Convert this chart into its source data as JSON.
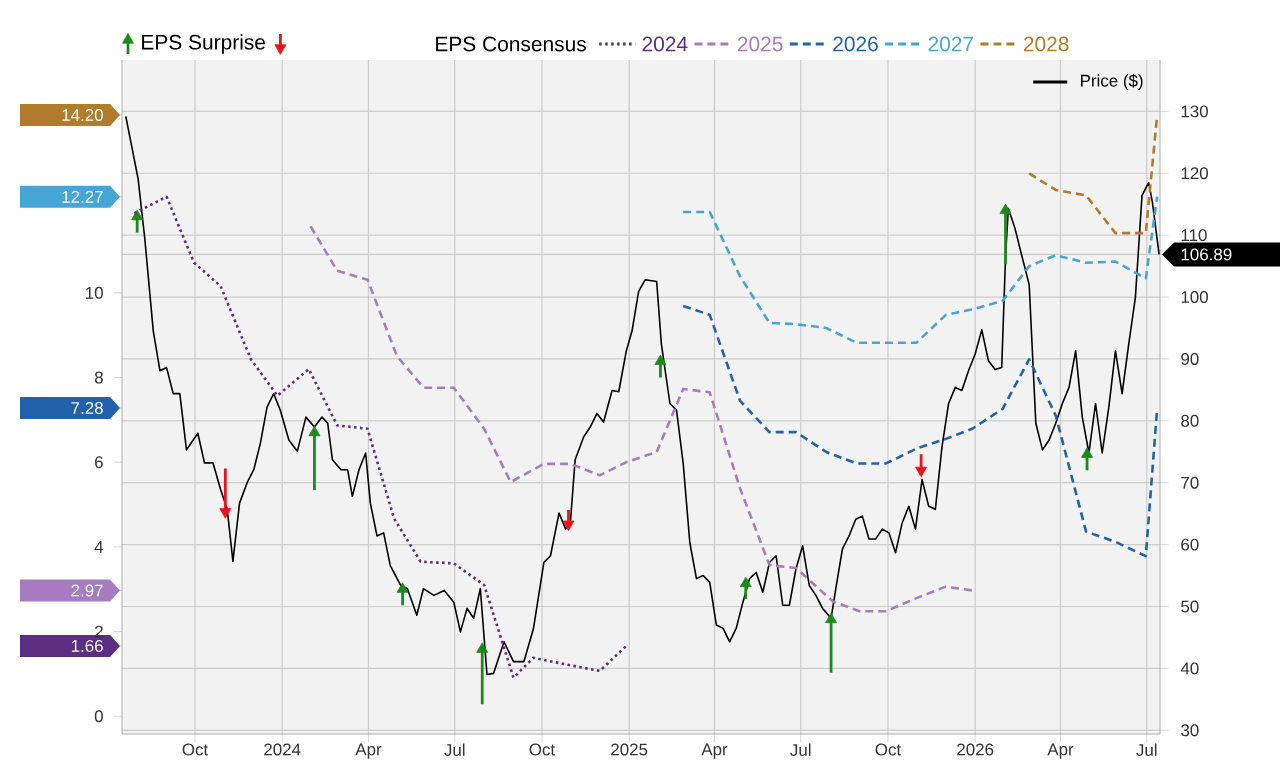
{
  "chart_data": {
    "type": "line",
    "legend": "top",
    "legend_title": "EPS Consensus",
    "grid": true,
    "xlim": [
      "2023-07-16",
      "2026-07-15"
    ],
    "xticks": [
      {
        "value": "2023-10-01",
        "label": "Oct"
      },
      {
        "value": "2024-01-01",
        "label": "2024"
      },
      {
        "value": "2024-04-01",
        "label": "Apr"
      },
      {
        "value": "2024-07-01",
        "label": "Jul"
      },
      {
        "value": "2024-10-01",
        "label": "Oct"
      },
      {
        "value": "2025-01-01",
        "label": "2025"
      },
      {
        "value": "2025-04-01",
        "label": "Apr"
      },
      {
        "value": "2025-07-01",
        "label": "Jul"
      },
      {
        "value": "2025-10-01",
        "label": "Oct"
      },
      {
        "value": "2026-01-01",
        "label": "2026"
      },
      {
        "value": "2026-04-01",
        "label": "Apr"
      },
      {
        "value": "2026-07-01",
        "label": "Jul"
      }
    ],
    "ylim": [
      -0.42,
      15.5
    ],
    "yticks": [
      0,
      {
        "value": 1.66,
        "label": "1.66"
      },
      2,
      {
        "value": 2.97,
        "label": "2.97"
      },
      4,
      6,
      {
        "value": 7.28,
        "label": "7.28"
      },
      8,
      10,
      {
        "value": 12.27,
        "label": "12.27"
      },
      {
        "value": 14.2,
        "label": "14.20"
      }
    ],
    "y2lim": [
      29.4,
      138.3
    ],
    "y2ticks": [
      30,
      40,
      50,
      60,
      70,
      80,
      90,
      100,
      {
        "value": 106.89,
        "label": "106.89"
      },
      110,
      120,
      130
    ],
    "series": [
      {
        "name": "Price ($)",
        "axis": "y2",
        "color": "#000000",
        "line_style": "solid",
        "x": [
          "2023-07-20",
          "2023-08-02",
          "2023-08-09",
          "2023-08-18",
          "2023-08-25",
          "2023-09-01",
          "2023-09-08",
          "2023-09-15",
          "2023-09-22",
          "2023-10-04",
          "2023-10-11",
          "2023-10-20",
          "2023-10-28",
          "2023-11-04",
          "2023-11-10",
          "2023-11-17",
          "2023-11-25",
          "2023-12-02",
          "2023-12-09",
          "2023-12-16",
          "2023-12-23",
          "2023-12-30",
          "2024-01-08",
          "2024-01-17",
          "2024-01-26",
          "2024-02-04",
          "2024-02-12",
          "2024-02-18",
          "2024-02-23",
          "2024-03-03",
          "2024-03-10",
          "2024-03-15",
          "2024-03-22",
          "2024-03-29",
          "2024-04-03",
          "2024-04-10",
          "2024-04-17",
          "2024-04-24",
          "2024-05-05",
          "2024-05-12",
          "2024-05-22",
          "2024-05-29",
          "2024-06-09",
          "2024-06-20",
          "2024-06-30",
          "2024-07-07",
          "2024-07-14",
          "2024-07-21",
          "2024-07-28",
          "2024-08-04",
          "2024-08-11",
          "2024-08-22",
          "2024-09-01",
          "2024-09-12",
          "2024-09-22",
          "2024-10-03",
          "2024-10-10",
          "2024-10-19",
          "2024-10-26",
          "2024-10-31",
          "2024-11-05",
          "2024-11-14",
          "2024-11-21",
          "2024-11-28",
          "2024-12-05",
          "2024-12-14",
          "2024-12-21",
          "2024-12-29",
          "2025-01-04",
          "2025-01-11",
          "2025-01-18",
          "2025-01-30",
          "2025-02-04",
          "2025-02-13",
          "2025-02-20",
          "2025-02-27",
          "2025-03-06",
          "2025-03-13",
          "2025-03-20",
          "2025-03-27",
          "2025-04-03",
          "2025-04-10",
          "2025-04-17",
          "2025-04-24",
          "2025-05-01",
          "2025-05-08",
          "2025-05-15",
          "2025-05-22",
          "2025-05-29",
          "2025-06-05",
          "2025-06-12",
          "2025-06-19",
          "2025-06-26",
          "2025-07-03",
          "2025-07-10",
          "2025-07-17",
          "2025-07-24",
          "2025-08-02",
          "2025-08-07",
          "2025-08-14",
          "2025-08-21",
          "2025-08-28",
          "2025-09-04",
          "2025-09-11",
          "2025-09-18",
          "2025-09-25",
          "2025-10-02",
          "2025-10-09",
          "2025-10-16",
          "2025-10-23",
          "2025-10-30",
          "2025-11-06",
          "2025-11-13",
          "2025-11-20",
          "2025-11-27",
          "2025-12-04",
          "2025-12-11",
          "2025-12-18",
          "2025-12-25",
          "2026-01-01",
          "2026-01-08",
          "2026-01-15",
          "2026-01-22",
          "2026-01-29",
          "2026-02-02",
          "2026-02-05",
          "2026-02-12",
          "2026-02-19",
          "2026-02-27",
          "2026-03-06",
          "2026-03-13",
          "2026-03-20",
          "2026-03-27",
          "2026-04-03",
          "2026-04-10",
          "2026-04-17",
          "2026-04-24",
          "2026-05-01",
          "2026-05-08",
          "2026-05-15",
          "2026-05-22",
          "2026-05-29",
          "2026-06-05",
          "2026-06-12",
          "2026-06-19",
          "2026-06-26",
          "2026-07-03",
          "2026-07-07",
          "2026-07-14"
        ],
        "values": [
          129.2,
          119.1,
          109.5,
          94.5,
          88.1,
          88.6,
          84.4,
          84.4,
          75.3,
          78.0,
          73.2,
          73.2,
          68.9,
          65.7,
          57.3,
          66.7,
          70.0,
          72.1,
          76.4,
          82.2,
          84.4,
          81.7,
          76.9,
          75.1,
          80.6,
          79.0,
          80.6,
          79.6,
          73.7,
          72.1,
          72.1,
          67.8,
          72.1,
          74.8,
          66.7,
          61.4,
          61.9,
          56.6,
          53.4,
          52.9,
          48.6,
          52.9,
          51.8,
          52.6,
          50.7,
          45.9,
          49.7,
          48.1,
          52.9,
          39.0,
          39.2,
          44.3,
          41.1,
          41.1,
          46.4,
          57.1,
          58.2,
          65.1,
          62.5,
          63.6,
          73.7,
          77.4,
          79.0,
          81.2,
          79.8,
          84.9,
          84.7,
          91.3,
          94.5,
          100.9,
          102.8,
          102.5,
          92.4,
          82.8,
          81.7,
          73.1,
          60.3,
          54.5,
          55.0,
          53.9,
          47.0,
          46.5,
          44.3,
          46.5,
          50.7,
          54.5,
          55.5,
          52.3,
          57.1,
          58.2,
          50.2,
          50.2,
          56.1,
          59.8,
          53.4,
          51.8,
          49.7,
          48.1,
          52.9,
          59.3,
          61.4,
          64.1,
          64.6,
          60.9,
          60.9,
          62.5,
          61.9,
          58.7,
          63.5,
          66.2,
          62.5,
          70.5,
          66.2,
          65.7,
          75.8,
          82.8,
          85.4,
          84.9,
          88.1,
          90.8,
          94.7,
          89.7,
          88.3,
          88.6,
          106.3,
          114.3,
          111.1,
          106.8,
          102.0,
          79.6,
          75.3,
          76.9,
          79.6,
          82.8,
          85.4,
          91.3,
          80.6,
          74.8,
          82.8,
          74.8,
          82.2,
          91.3,
          84.4,
          92.4,
          99.9,
          116.4,
          118.5,
          115.3,
          106.89
        ]
      },
      {
        "name": "2024",
        "color": "#5b2e82",
        "line_style": "dotted",
        "x": [
          "2023-07-29",
          "2023-09-01",
          "2023-09-30",
          "2023-10-28",
          "2023-11-29",
          "2023-12-27",
          "2024-01-29",
          "2024-02-28",
          "2024-03-31",
          "2024-04-28",
          "2024-05-26",
          "2024-06-30",
          "2024-08-01",
          "2024-09-01",
          "2024-09-22",
          "2024-10-27",
          "2024-12-01",
          "2024-12-29"
        ],
        "values": [
          11.88,
          12.27,
          10.71,
          10.16,
          8.43,
          7.57,
          8.2,
          6.87,
          6.79,
          4.67,
          3.65,
          3.61,
          3.1,
          0.91,
          1.38,
          1.22,
          1.07,
          1.66
        ]
      },
      {
        "name": "2025",
        "color": "#a77bbf",
        "line_style": "dashed",
        "x": [
          "2024-01-31",
          "2024-02-28",
          "2024-03-31",
          "2024-05-01",
          "2024-05-29",
          "2024-06-30",
          "2024-08-01",
          "2024-08-29",
          "2024-10-03",
          "2024-10-31",
          "2024-12-01",
          "2024-12-29",
          "2025-01-30",
          "2025-02-27",
          "2025-03-27",
          "2025-04-28",
          "2025-05-29",
          "2025-06-26",
          "2025-08-04",
          "2025-09-01",
          "2025-09-29",
          "2025-10-31",
          "2025-12-01",
          "2025-12-29"
        ],
        "values": [
          11.57,
          10.52,
          10.31,
          8.51,
          7.76,
          7.76,
          6.79,
          5.53,
          5.96,
          5.96,
          5.69,
          6.0,
          6.24,
          7.73,
          7.65,
          5.38,
          3.57,
          3.5,
          2.71,
          2.48,
          2.48,
          2.79,
          3.06,
          2.97
        ]
      },
      {
        "name": "2026",
        "color": "#2262ad",
        "line_style": "dashed",
        "x": [
          "2025-02-27",
          "2025-03-27",
          "2025-04-28",
          "2025-05-29",
          "2025-06-26",
          "2025-07-28",
          "2025-08-29",
          "2025-09-29",
          "2025-10-31",
          "2025-12-01",
          "2025-12-29",
          "2026-01-30",
          "2026-02-27",
          "2026-03-27",
          "2026-04-28",
          "2026-05-29",
          "2026-06-30",
          "2026-07-12"
        ],
        "values": [
          9.69,
          9.48,
          7.45,
          6.71,
          6.71,
          6.24,
          5.97,
          5.97,
          6.32,
          6.55,
          6.79,
          7.26,
          8.43,
          7.1,
          4.36,
          4.12,
          3.78,
          7.28
        ]
      },
      {
        "name": "2027",
        "color": "#45a6d6",
        "line_style": "dashed",
        "x": [
          "2025-02-27",
          "2025-03-27",
          "2025-04-28",
          "2025-05-29",
          "2025-06-26",
          "2025-07-28",
          "2025-08-29",
          "2025-09-29",
          "2025-10-31",
          "2025-12-01",
          "2025-12-29",
          "2026-01-30",
          "2026-02-27",
          "2026-03-27",
          "2026-04-28",
          "2026-05-29",
          "2026-06-30",
          "2026-07-12"
        ],
        "values": [
          11.91,
          11.91,
          10.39,
          9.29,
          9.26,
          9.17,
          8.82,
          8.82,
          8.82,
          9.48,
          9.61,
          9.81,
          10.63,
          10.89,
          10.71,
          10.74,
          10.34,
          12.27
        ]
      },
      {
        "name": "2028",
        "color": "#b07b2a",
        "line_style": "dashed",
        "x": [
          "2026-02-27",
          "2026-03-27",
          "2026-04-28",
          "2026-05-29",
          "2026-06-30",
          "2026-07-12"
        ],
        "values": [
          12.82,
          12.43,
          12.3,
          11.41,
          11.41,
          14.2
        ]
      },
      {
        "name": "EPS Surprise",
        "type": "scatter",
        "axis": "y2",
        "color": "#1a8a1a",
        "x": [
          "2023-08-01",
          "2024-02-04",
          "2024-05-07",
          "2024-07-30",
          "2025-02-03",
          "2025-05-04",
          "2025-08-02",
          "2026-02-02",
          "2026-04-29"
        ],
        "values": [
          113,
          78.1,
          52.8,
          43.1,
          89.6,
          53.7,
          47.9,
          114,
          74.6
        ],
        "errors": [
          [
            110.4,
            113
          ],
          [
            68.8,
            78.1
          ],
          [
            50.2,
            52.8
          ],
          [
            34.2,
            43.1
          ],
          [
            87,
            89.6
          ],
          [
            51.2,
            53.7
          ],
          [
            39.3,
            47.9
          ],
          [
            105.3,
            114
          ],
          [
            72,
            74.6
          ]
        ]
      },
      {
        "type": "scatter",
        "axis": "y2",
        "color": "#e8141b",
        "x": [
          "2023-11-02",
          "2024-10-29",
          "2025-11-05"
        ],
        "values": [
          65.3,
          63.3,
          72
        ],
        "errors": [
          [
            65.3,
            72.3
          ],
          [
            63.3,
            65.6
          ],
          [
            72,
            74.6
          ]
        ]
      }
    ]
  }
}
